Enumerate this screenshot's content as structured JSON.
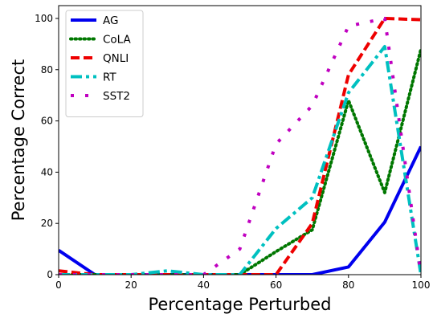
{
  "chart_data": {
    "type": "line",
    "title": "",
    "xlabel": "Percentage Perturbed",
    "ylabel": "Percentage Correct",
    "xlim": [
      0,
      100
    ],
    "ylim": [
      0,
      105
    ],
    "xticks": [
      0,
      20,
      40,
      60,
      80,
      100
    ],
    "yticks": [
      0,
      20,
      40,
      60,
      80,
      100
    ],
    "grid": false,
    "legend_position": "top-left",
    "x": [
      0,
      10,
      20,
      30,
      40,
      50,
      60,
      70,
      80,
      90,
      100
    ],
    "series": [
      {
        "name": "AG",
        "color": "#0000ee",
        "style": "solid",
        "values": [
          9.5,
          0,
          0,
          0,
          0,
          0,
          0,
          0,
          3,
          20.5,
          50
        ]
      },
      {
        "name": "CoLA",
        "color": "#007700",
        "style": "dotted",
        "values": [
          0,
          0,
          0,
          0,
          0,
          0,
          9,
          17.5,
          68,
          32,
          88
        ]
      },
      {
        "name": "QNLI",
        "color": "#ee0000",
        "style": "dashed",
        "values": [
          1.5,
          0,
          0,
          0,
          0,
          0,
          0,
          20,
          78,
          100,
          99.5
        ]
      },
      {
        "name": "RT",
        "color": "#00c0c0",
        "style": "dashdot",
        "values": [
          0,
          0,
          0,
          1.5,
          0,
          0,
          18,
          30,
          71,
          89,
          0
        ]
      },
      {
        "name": "SST2",
        "color": "#c000c0",
        "style": "dashdot2",
        "values": [
          0,
          0,
          0,
          0,
          0,
          10,
          51,
          66,
          97,
          100,
          0
        ]
      }
    ]
  }
}
